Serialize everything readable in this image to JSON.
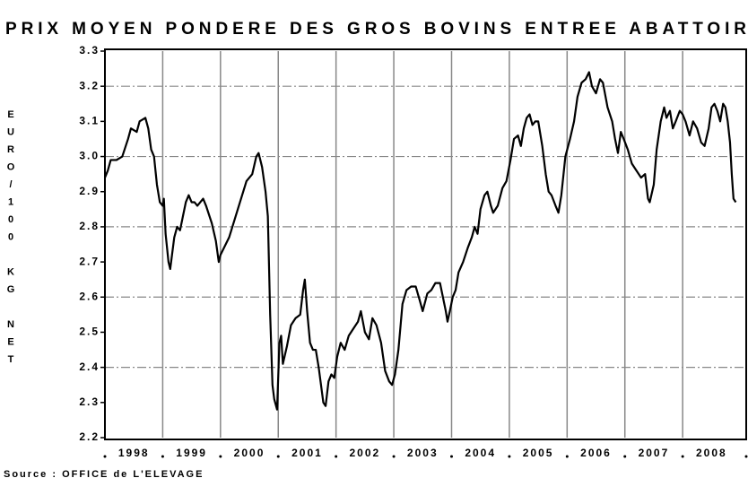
{
  "chart_data": {
    "type": "line",
    "title": "PRIX MOYEN PONDERE DES GROS BOVINS ENTREE ABATTOIR",
    "y_label": "EURO/100 KG NET",
    "source": "Source : OFFICE de L'ELEVAGE",
    "xlim": [
      1998,
      2009.1
    ],
    "ylim": [
      2.2,
      3.3
    ],
    "xticks": [
      {
        "value": 1998.5,
        "label": "1998"
      },
      {
        "value": 1999.5,
        "label": "1999"
      },
      {
        "value": 2000.5,
        "label": "2000"
      },
      {
        "value": 2001.5,
        "label": "2001"
      },
      {
        "value": 2002.5,
        "label": "2002"
      },
      {
        "value": 2003.5,
        "label": "2003"
      },
      {
        "value": 2004.5,
        "label": "2004"
      },
      {
        "value": 2005.5,
        "label": "2005"
      },
      {
        "value": 2006.5,
        "label": "2006"
      },
      {
        "value": 2007.5,
        "label": "2007"
      },
      {
        "value": 2008.5,
        "label": "2008"
      }
    ],
    "yticks": [
      2.2,
      2.3,
      2.4,
      2.5,
      2.6,
      2.7,
      2.8,
      2.9,
      {
        "value": 3,
        "label": "3.0"
      },
      3.1,
      3.2,
      3.3
    ],
    "ygrid": [
      2.4,
      2.6,
      2.8,
      3.0,
      3.2
    ],
    "color": "#000000",
    "x": [
      1998.0,
      1998.05,
      1998.1,
      1998.2,
      1998.3,
      1998.4,
      1998.45,
      1998.55,
      1998.6,
      1998.7,
      1998.75,
      1998.8,
      1998.85,
      1998.9,
      1998.95,
      1999.0,
      1999.02,
      1999.05,
      1999.1,
      1999.13,
      1999.2,
      1999.25,
      1999.3,
      1999.35,
      1999.4,
      1999.45,
      1999.5,
      1999.55,
      1999.6,
      1999.7,
      1999.75,
      1999.85,
      1999.92,
      1999.97,
      2000.0,
      2000.15,
      2000.3,
      2000.45,
      2000.55,
      2000.62,
      2000.66,
      2000.72,
      2000.78,
      2000.82,
      2000.86,
      2000.9,
      2000.93,
      2000.98,
      2001.02,
      2001.05,
      2001.08,
      2001.15,
      2001.22,
      2001.3,
      2001.38,
      2001.43,
      2001.46,
      2001.5,
      2001.55,
      2001.6,
      2001.65,
      2001.7,
      2001.78,
      2001.82,
      2001.87,
      2001.92,
      2001.97,
      2002.02,
      2002.08,
      2002.15,
      2002.22,
      2002.3,
      2002.38,
      2002.43,
      2002.5,
      2002.57,
      2002.63,
      2002.7,
      2002.78,
      2002.85,
      2002.92,
      2002.97,
      2003.02,
      2003.08,
      2003.15,
      2003.22,
      2003.3,
      2003.38,
      2003.45,
      2003.5,
      2003.58,
      2003.65,
      2003.72,
      2003.8,
      2003.85,
      2003.9,
      2003.93,
      2003.97,
      2004.02,
      2004.07,
      2004.12,
      2004.2,
      2004.28,
      2004.35,
      2004.4,
      2004.45,
      2004.5,
      2004.57,
      2004.62,
      2004.68,
      2004.72,
      2004.8,
      2004.88,
      2004.95,
      2005.02,
      2005.08,
      2005.15,
      2005.2,
      2005.25,
      2005.3,
      2005.35,
      2005.4,
      2005.45,
      2005.5,
      2005.57,
      2005.63,
      2005.68,
      2005.73,
      2005.8,
      2005.85,
      2005.9,
      2005.97,
      2006.05,
      2006.12,
      2006.18,
      2006.25,
      2006.32,
      2006.38,
      2006.43,
      2006.5,
      2006.57,
      2006.62,
      2006.7,
      2006.78,
      2006.83,
      2006.88,
      2006.93,
      2006.98,
      2007.05,
      2007.12,
      2007.2,
      2007.28,
      2007.35,
      2007.4,
      2007.43,
      2007.5,
      2007.55,
      2007.62,
      2007.68,
      2007.72,
      2007.78,
      2007.83,
      2007.88,
      2007.95,
      2008.0,
      2008.05,
      2008.12,
      2008.18,
      2008.25,
      2008.32,
      2008.38,
      2008.45,
      2008.5,
      2008.55,
      2008.6,
      2008.65,
      2008.7,
      2008.74,
      2008.78,
      2008.82,
      2008.85,
      2008.88,
      2008.92
    ],
    "values": [
      2.94,
      2.96,
      2.99,
      2.99,
      3.0,
      3.05,
      3.08,
      3.07,
      3.1,
      3.11,
      3.08,
      3.02,
      3.0,
      2.92,
      2.87,
      2.86,
      2.88,
      2.78,
      2.7,
      2.68,
      2.77,
      2.8,
      2.79,
      2.83,
      2.87,
      2.89,
      2.87,
      2.87,
      2.86,
      2.88,
      2.86,
      2.81,
      2.76,
      2.7,
      2.72,
      2.77,
      2.85,
      2.93,
      2.95,
      3.0,
      3.01,
      2.97,
      2.9,
      2.83,
      2.55,
      2.35,
      2.31,
      2.28,
      2.47,
      2.49,
      2.41,
      2.46,
      2.52,
      2.54,
      2.55,
      2.62,
      2.65,
      2.56,
      2.47,
      2.45,
      2.45,
      2.4,
      2.3,
      2.29,
      2.36,
      2.38,
      2.37,
      2.43,
      2.47,
      2.45,
      2.49,
      2.51,
      2.53,
      2.56,
      2.5,
      2.48,
      2.54,
      2.52,
      2.47,
      2.39,
      2.36,
      2.35,
      2.38,
      2.45,
      2.58,
      2.62,
      2.63,
      2.63,
      2.59,
      2.56,
      2.61,
      2.62,
      2.64,
      2.64,
      2.6,
      2.56,
      2.53,
      2.56,
      2.6,
      2.62,
      2.67,
      2.7,
      2.74,
      2.77,
      2.8,
      2.78,
      2.85,
      2.89,
      2.9,
      2.86,
      2.84,
      2.86,
      2.91,
      2.93,
      2.99,
      3.05,
      3.06,
      3.03,
      3.08,
      3.11,
      3.12,
      3.09,
      3.1,
      3.1,
      3.03,
      2.95,
      2.9,
      2.89,
      2.86,
      2.84,
      2.89,
      3.0,
      3.05,
      3.1,
      3.17,
      3.21,
      3.22,
      3.24,
      3.2,
      3.18,
      3.22,
      3.21,
      3.14,
      3.1,
      3.05,
      3.01,
      3.07,
      3.05,
      3.02,
      2.98,
      2.96,
      2.94,
      2.95,
      2.88,
      2.87,
      2.92,
      3.02,
      3.1,
      3.14,
      3.11,
      3.13,
      3.08,
      3.1,
      3.13,
      3.12,
      3.1,
      3.06,
      3.1,
      3.08,
      3.04,
      3.03,
      3.08,
      3.14,
      3.15,
      3.13,
      3.1,
      3.15,
      3.14,
      3.1,
      3.04,
      2.95,
      2.88,
      2.87
    ]
  }
}
